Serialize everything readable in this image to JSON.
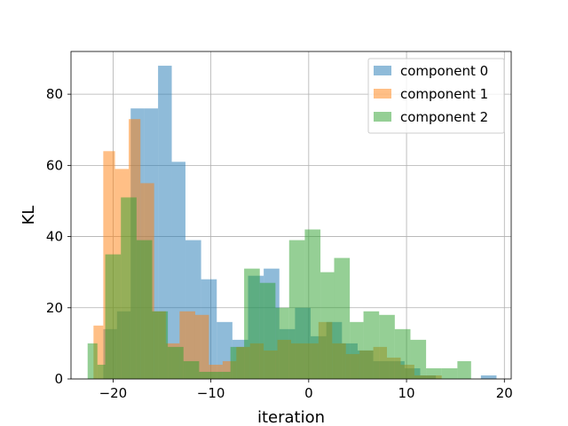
{
  "chart_data": {
    "type": "bar",
    "title": "",
    "xlabel": "iteration",
    "ylabel": "KL",
    "xlim": [
      -24.3,
      20.7
    ],
    "ylim": [
      0,
      92
    ],
    "xticks": [
      -20,
      -10,
      0,
      10,
      20
    ],
    "xtick_labels": [
      "−20",
      "−10",
      "0",
      "10",
      "20"
    ],
    "yticks": [
      0,
      20,
      40,
      60,
      80
    ],
    "ytick_labels": [
      "0",
      "20",
      "40",
      "60",
      "80"
    ],
    "grid": true,
    "legend_position": "top-right",
    "series": [
      {
        "name": "component 0",
        "color": "#1f77b4",
        "opacity": 0.5,
        "bins": [
          [
            -21.0,
            -19.6,
            14
          ],
          [
            -19.6,
            -18.2,
            19
          ],
          [
            -18.2,
            -16.8,
            76
          ],
          [
            -16.8,
            -15.4,
            76
          ],
          [
            -15.4,
            -14.0,
            88
          ],
          [
            -14.0,
            -12.6,
            61
          ],
          [
            -12.6,
            -11.0,
            39
          ],
          [
            -11.0,
            -9.4,
            28
          ],
          [
            -9.4,
            -7.8,
            16
          ],
          [
            -7.8,
            -6.2,
            11
          ],
          [
            -6.2,
            -4.6,
            29
          ],
          [
            -4.6,
            -3.0,
            31
          ],
          [
            -3.0,
            -1.4,
            14
          ],
          [
            -1.4,
            0.2,
            20
          ],
          [
            0.2,
            1.8,
            12
          ],
          [
            1.8,
            3.4,
            16
          ],
          [
            3.4,
            5.0,
            10
          ],
          [
            5.0,
            6.6,
            8
          ],
          [
            6.6,
            8.2,
            5
          ],
          [
            8.2,
            9.8,
            5
          ],
          [
            9.8,
            11.4,
            3
          ],
          [
            11.4,
            13.0,
            1
          ],
          [
            13.0,
            14.6,
            0
          ],
          [
            14.6,
            16.2,
            0
          ],
          [
            16.2,
            17.6,
            0
          ],
          [
            17.6,
            19.2,
            1
          ]
        ]
      },
      {
        "name": "component 1",
        "color": "#ff7f0e",
        "opacity": 0.5,
        "bins": [
          [
            -22.0,
            -21.0,
            15
          ],
          [
            -21.0,
            -19.8,
            64
          ],
          [
            -19.8,
            -18.4,
            59
          ],
          [
            -18.4,
            -17.2,
            73
          ],
          [
            -17.2,
            -15.8,
            55
          ],
          [
            -15.8,
            -14.6,
            19
          ],
          [
            -14.6,
            -13.2,
            10
          ],
          [
            -13.2,
            -11.6,
            19
          ],
          [
            -11.6,
            -10.2,
            18
          ],
          [
            -10.2,
            -8.8,
            4
          ],
          [
            -8.8,
            -7.4,
            5
          ],
          [
            -7.4,
            -6.0,
            9
          ],
          [
            -6.0,
            -4.6,
            10
          ],
          [
            -4.6,
            -3.2,
            8
          ],
          [
            -3.2,
            -1.8,
            11
          ],
          [
            -1.8,
            -0.4,
            10
          ],
          [
            -0.4,
            1.0,
            10
          ],
          [
            1.0,
            2.4,
            16
          ],
          [
            2.4,
            3.8,
            10
          ],
          [
            3.8,
            5.2,
            7
          ],
          [
            5.2,
            6.6,
            8
          ],
          [
            6.6,
            8.0,
            9
          ],
          [
            8.0,
            9.4,
            6
          ],
          [
            9.4,
            10.8,
            4
          ],
          [
            10.8,
            12.2,
            1
          ],
          [
            12.2,
            13.6,
            1
          ]
        ]
      },
      {
        "name": "component 2",
        "color": "#2ca02c",
        "opacity": 0.5,
        "bins": [
          [
            -22.6,
            -21.6,
            10
          ],
          [
            -21.6,
            -20.8,
            4
          ],
          [
            -20.8,
            -19.2,
            35
          ],
          [
            -19.2,
            -17.6,
            51
          ],
          [
            -17.6,
            -16.0,
            39
          ],
          [
            -16.0,
            -14.4,
            19
          ],
          [
            -14.4,
            -12.8,
            9
          ],
          [
            -12.8,
            -11.2,
            5
          ],
          [
            -11.2,
            -9.6,
            2
          ],
          [
            -9.6,
            -8.0,
            2
          ],
          [
            -8.0,
            -6.6,
            9
          ],
          [
            -6.6,
            -5.0,
            31
          ],
          [
            -5.0,
            -3.4,
            27
          ],
          [
            -3.4,
            -2.0,
            20
          ],
          [
            -2.0,
            -0.4,
            39
          ],
          [
            -0.4,
            1.2,
            42
          ],
          [
            1.2,
            2.6,
            30
          ],
          [
            2.6,
            4.2,
            34
          ],
          [
            4.2,
            5.6,
            16
          ],
          [
            5.6,
            7.2,
            19
          ],
          [
            7.2,
            8.8,
            18
          ],
          [
            8.8,
            10.4,
            14
          ],
          [
            10.4,
            12.0,
            11
          ],
          [
            12.0,
            13.6,
            3
          ],
          [
            13.6,
            15.2,
            3
          ],
          [
            15.2,
            16.6,
            5
          ]
        ]
      }
    ]
  }
}
